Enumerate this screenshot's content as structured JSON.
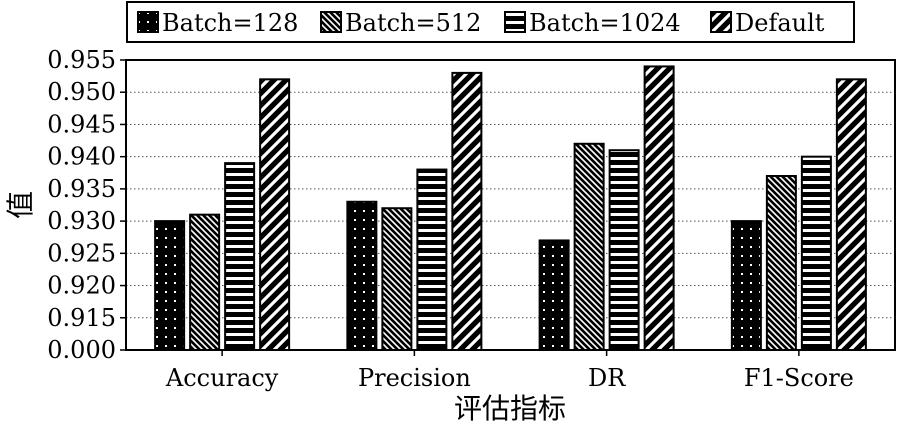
{
  "chart_data": {
    "type": "bar",
    "xlabel": "评估指标",
    "ylabel": "值",
    "categories": [
      "Accuracy",
      "Precision",
      "DR",
      "F1-Score"
    ],
    "series": [
      {
        "name": "Batch=128",
        "pattern": "dots",
        "values": [
          0.93,
          0.933,
          0.927,
          0.93
        ]
      },
      {
        "name": "Batch=512",
        "pattern": "backslash",
        "values": [
          0.931,
          0.932,
          0.942,
          0.937
        ]
      },
      {
        "name": "Batch=1024",
        "pattern": "horizontal",
        "values": [
          0.939,
          0.938,
          0.941,
          0.94
        ]
      },
      {
        "name": "Default",
        "pattern": "slash",
        "values": [
          0.952,
          0.953,
          0.954,
          0.952
        ]
      }
    ],
    "yticks": [
      "0.000",
      "0.915",
      "0.920",
      "0.925",
      "0.930",
      "0.935",
      "0.940",
      "0.945",
      "0.950",
      "0.955"
    ],
    "y_axis_break": {
      "bottom_label": "0.000",
      "continuous_from": 0.91,
      "continuous_to": 0.955
    },
    "grid": "horizontal dotted",
    "legend_position": "top"
  }
}
